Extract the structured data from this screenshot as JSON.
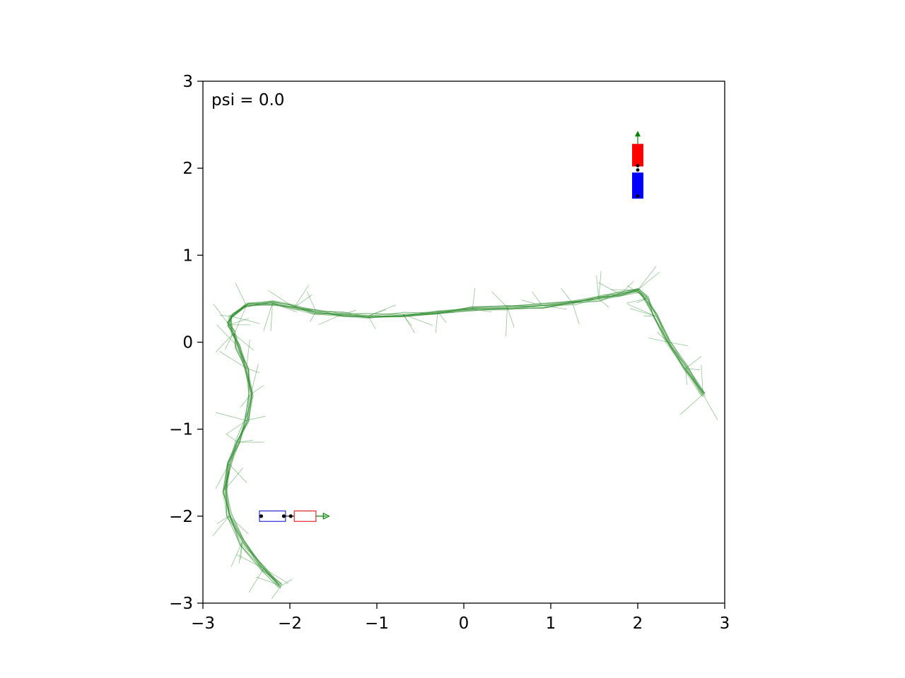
{
  "chart_data": {
    "type": "line",
    "title": "",
    "xlabel": "",
    "ylabel": "",
    "xlim": [
      -3,
      3
    ],
    "ylim": [
      -3,
      3
    ],
    "xticks": [
      "−3",
      "−2",
      "−1",
      "0",
      "1",
      "2",
      "3"
    ],
    "yticks": [
      "−3",
      "−2",
      "−1",
      "0",
      "1",
      "2",
      "3"
    ],
    "annotation": "psi = 0.0",
    "grid": false,
    "colors": {
      "paths": "#2a8a2a",
      "arrow": "#008000",
      "trailer_goal": "#0000ff",
      "tractor_goal": "#ff0000",
      "trailer_start": "#0000cc",
      "tractor_start": "#dd0000",
      "hitch": "#000000"
    },
    "trajectory": {
      "name": "",
      "x": [
        -2.1,
        -2.3,
        -2.55,
        -2.7,
        -2.75,
        -2.7,
        -2.6,
        -2.5,
        -2.45,
        -2.5,
        -2.6,
        -2.65,
        -2.7,
        -2.68,
        -2.5,
        -2.2,
        -1.95,
        -1.7,
        -1.4,
        -1.1,
        -0.7,
        -0.3,
        0.1,
        0.5,
        0.9,
        1.25,
        1.55,
        1.8,
        2.0,
        2.1,
        2.2,
        2.35,
        2.55,
        2.75
      ],
      "y": [
        -2.8,
        -2.6,
        -2.3,
        -2.0,
        -1.7,
        -1.4,
        -1.15,
        -0.9,
        -0.6,
        -0.3,
        -0.05,
        0.1,
        0.2,
        0.3,
        0.42,
        0.45,
        0.4,
        0.35,
        0.32,
        0.3,
        0.32,
        0.35,
        0.38,
        0.4,
        0.42,
        0.45,
        0.5,
        0.55,
        0.6,
        0.5,
        0.3,
        0.0,
        -0.3,
        -0.6
      ]
    },
    "start_pose": {
      "trailer_x": [
        -2.35,
        -2.05
      ],
      "tractor_x": [
        -1.95,
        -1.7
      ],
      "y": -2.0,
      "heading_deg": 0,
      "hitch_points": [
        [
          -2.33,
          -2.0
        ],
        [
          -2.07,
          -2.0
        ],
        [
          -1.99,
          -2.0
        ]
      ]
    },
    "goal_pose": {
      "x": 2.0,
      "trailer_y": [
        1.65,
        1.95
      ],
      "tractor_y": [
        2.02,
        2.28
      ],
      "heading_deg": 90,
      "hitch_points": [
        [
          2.0,
          1.68
        ],
        [
          2.0,
          1.98
        ],
        [
          2.0,
          2.03
        ]
      ]
    }
  }
}
